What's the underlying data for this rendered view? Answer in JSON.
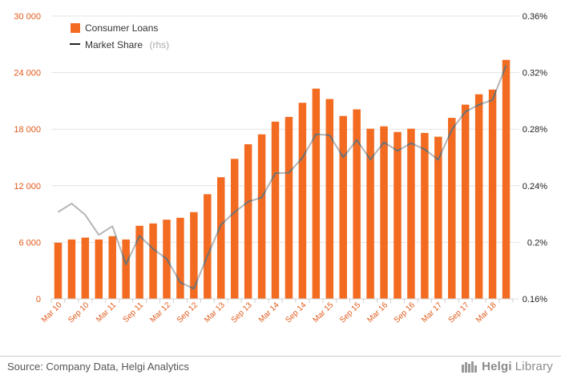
{
  "chart_data": {
    "type": "bar",
    "categories": [
      "Mar 10",
      "Jun 10",
      "Sep 10",
      "Dec 10",
      "Mar 11",
      "Jun 11",
      "Sep 11",
      "Dec 11",
      "Mar 12",
      "Jun 12",
      "Sep 12",
      "Dec 12",
      "Mar 13",
      "Jun 13",
      "Sep 13",
      "Dec 13",
      "Mar 14",
      "Jun 14",
      "Sep 14",
      "Dec 14",
      "Mar 15",
      "Jun 15",
      "Sep 15",
      "Dec 15",
      "Mar 16",
      "Jun 16",
      "Sep 16",
      "Dec 16",
      "Mar 17",
      "Jun 17",
      "Sep 17",
      "Dec 17",
      "Mar 18",
      "Jun 18"
    ],
    "x_tick_labels": [
      "Mar 10",
      "Sep 10",
      "Mar 11",
      "Sep 11",
      "Mar 12",
      "Sep 12",
      "Mar 13",
      "Sep 13",
      "Mar 14",
      "Sep 14",
      "Mar 15",
      "Sep 15",
      "Mar 16",
      "Sep 16",
      "Mar 17",
      "Sep 17",
      "Mar 18"
    ],
    "series": [
      {
        "name": "Consumer Loans",
        "kind": "bar",
        "axis": "left",
        "color": "#f26b21",
        "values": [
          5950,
          6300,
          6500,
          6300,
          6650,
          6300,
          7750,
          8000,
          8400,
          8600,
          9200,
          11100,
          12900,
          14850,
          16400,
          17450,
          18800,
          19300,
          20800,
          22300,
          21200,
          19400,
          20100,
          18050,
          18300,
          17700,
          18050,
          17600,
          17200,
          19200,
          20600,
          21700,
          22200,
          25350
        ]
      },
      {
        "name": "Market Share",
        "sub_label": "(rhs)",
        "kind": "line",
        "axis": "right",
        "color": "#888888",
        "values": [
          0.2214,
          0.2274,
          0.2194,
          0.2052,
          0.2114,
          0.1844,
          0.2046,
          0.1953,
          0.1883,
          0.1716,
          0.1672,
          0.1903,
          0.2124,
          0.2214,
          0.2287,
          0.2317,
          0.2488,
          0.2492,
          0.2598,
          0.2764,
          0.2757,
          0.2601,
          0.2724,
          0.2585,
          0.2707,
          0.2647,
          0.2701,
          0.2657,
          0.2584,
          0.2797,
          0.2923,
          0.2973,
          0.3007,
          0.3251
        ]
      }
    ],
    "y_left": {
      "min": 0,
      "max": 30000,
      "ticks": [
        0,
        6000,
        12000,
        18000,
        24000,
        30000
      ],
      "tick_labels": [
        "0",
        "6 000",
        "12 000",
        "18 000",
        "24 000",
        "30 000"
      ]
    },
    "y_right": {
      "min": 0.16,
      "max": 0.36,
      "ticks": [
        0.16,
        0.2,
        0.24,
        0.28,
        0.32,
        0.36
      ],
      "tick_labels": [
        "0.16%",
        "0.2%",
        "0.24%",
        "0.28%",
        "0.32%",
        "0.36%"
      ]
    },
    "grid": true,
    "legend_position": "top-left"
  },
  "footer": {
    "source": "Source: Company Data, Helgi Analytics",
    "brand_bold": "Helgi",
    "brand_light": "Library"
  }
}
